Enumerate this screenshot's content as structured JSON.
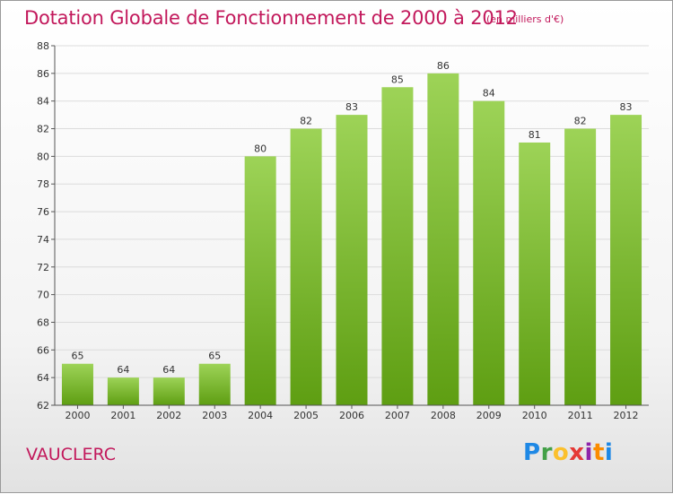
{
  "header": {
    "title": "Dotation Globale de Fonctionnement de 2000 à 2012",
    "subtitle": "(en milliers d'€)"
  },
  "footer": {
    "commune": "VAUCLERC",
    "logo_letters": [
      "P",
      "r",
      "o",
      "x",
      "i",
      "t",
      "i"
    ]
  },
  "chart_data": {
    "type": "bar",
    "title": "Dotation Globale de Fonctionnement de 2000 à 2012",
    "subtitle": "(en milliers d'€)",
    "xlabel": "",
    "ylabel": "",
    "categories": [
      "2000",
      "2001",
      "2002",
      "2003",
      "2004",
      "2005",
      "2006",
      "2007",
      "2008",
      "2009",
      "2010",
      "2011",
      "2012"
    ],
    "values": [
      65,
      64,
      64,
      65,
      80,
      82,
      83,
      85,
      86,
      84,
      81,
      82,
      83
    ],
    "ylim": [
      62,
      88
    ],
    "yticks": [
      62,
      64,
      66,
      68,
      70,
      72,
      74,
      76,
      78,
      80,
      82,
      84,
      86,
      88
    ],
    "grid": true,
    "legend": "none",
    "colors": {
      "bar_top": "#9dd357",
      "bar_bottom": "#5e9e12",
      "grid": "#dcdcdc",
      "axis": "#555555"
    }
  }
}
